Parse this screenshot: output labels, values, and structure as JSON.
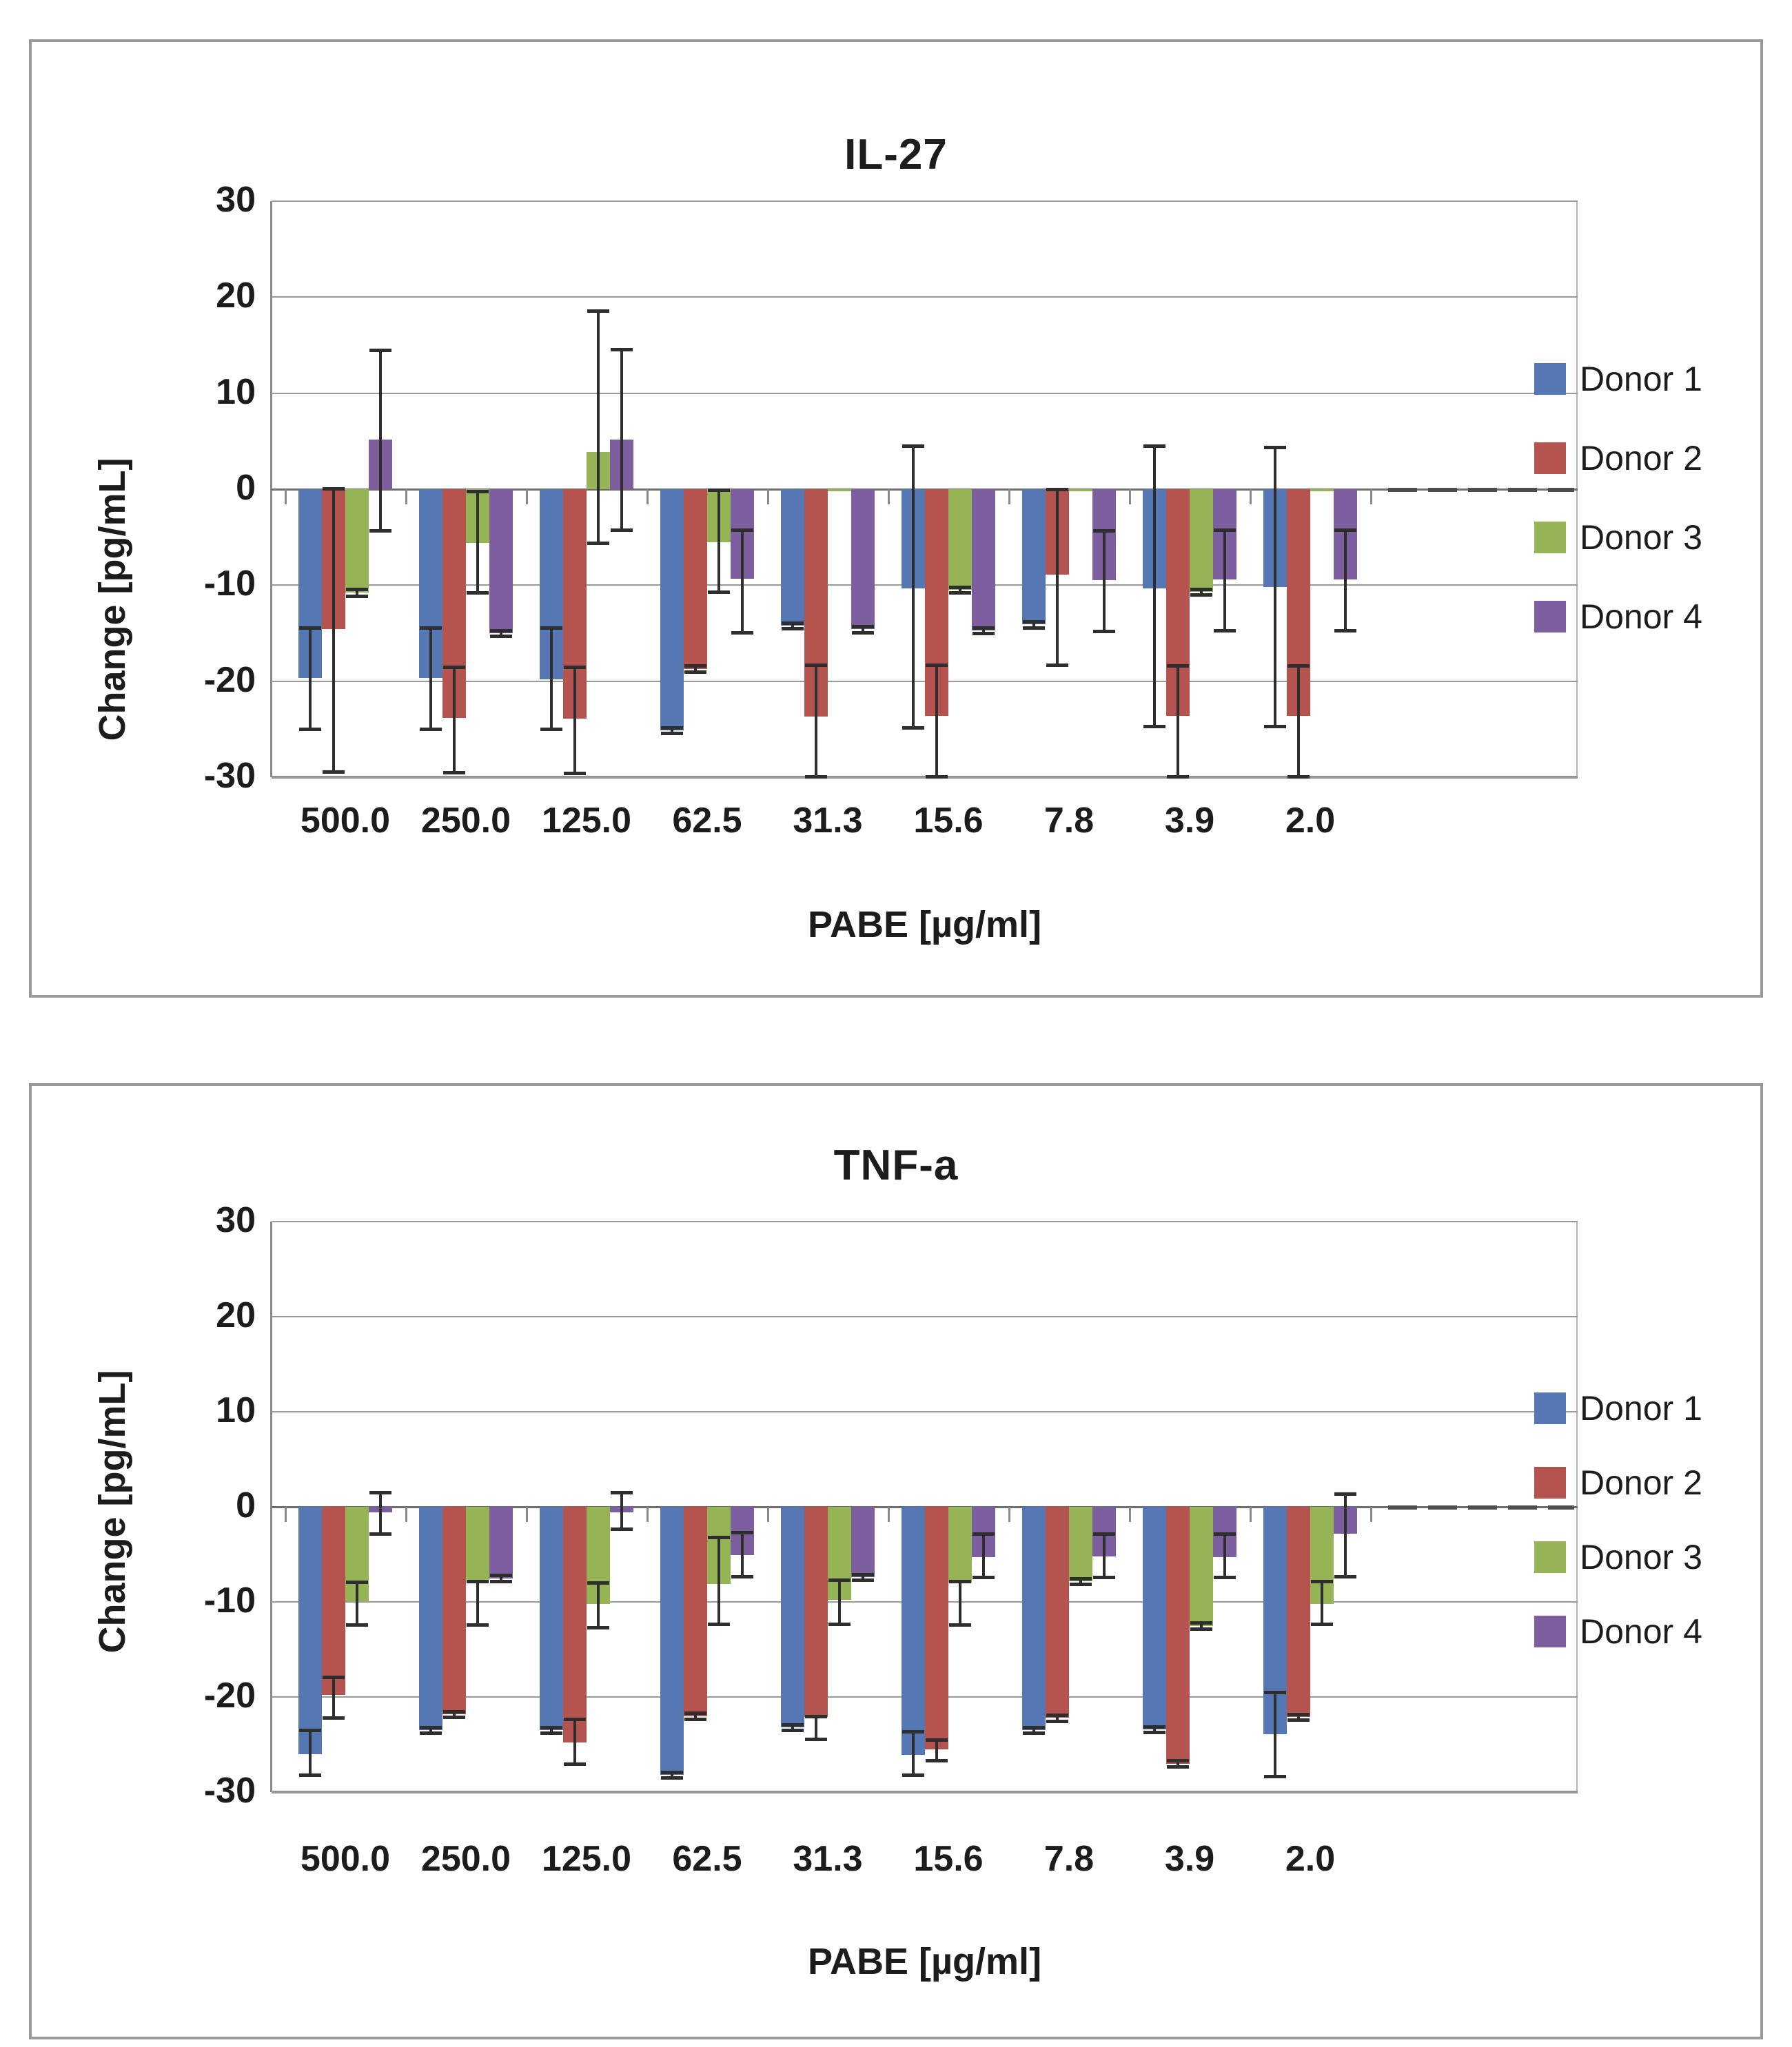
{
  "figure": {
    "background": "#ffffff",
    "panel_border_color": "#9a9a9a"
  },
  "chart_data": [
    {
      "type": "bar",
      "title": "IL-27",
      "ylabel": "Change [pg/mL]",
      "xlabel": "PABE [µg/ml]",
      "ylim": [
        -30,
        30
      ],
      "yticks": [
        30,
        20,
        10,
        0,
        -10,
        -20,
        -30
      ],
      "grid": true,
      "legend_position": "right",
      "categories": [
        "500.0",
        "250.0",
        "125.0",
        "62.5",
        "31.3",
        "15.6",
        "7.8",
        "3.9",
        "2.0"
      ],
      "series": [
        {
          "name": "Donor 1",
          "color": "#5577B4",
          "values": [
            -19.7,
            -19.7,
            -19.8,
            -25.1,
            -14.2,
            -10.3,
            -14.1,
            -10.3,
            -10.2
          ],
          "error_bars": [
            {
              "hi": -14.4,
              "lo": -25.0
            },
            {
              "hi": -14.4,
              "lo": -25.0
            },
            {
              "hi": -14.4,
              "lo": -25.0
            },
            {
              "hi": -24.8,
              "lo": -25.4
            },
            {
              "hi": -13.9,
              "lo": -14.5
            },
            {
              "hi": 4.5,
              "lo": -24.8
            },
            {
              "hi": -13.8,
              "lo": -14.4
            },
            {
              "hi": 4.5,
              "lo": -24.7
            },
            {
              "hi": 4.4,
              "lo": -24.7
            }
          ]
        },
        {
          "name": "Donor 2",
          "color": "#B5534F",
          "values": [
            -14.6,
            -23.8,
            -23.9,
            -18.7,
            -23.7,
            -23.6,
            -8.9,
            -23.6,
            -23.6
          ],
          "error_bars": [
            {
              "hi": 0.1,
              "lo": -29.4
            },
            {
              "hi": -18.5,
              "lo": -29.5
            },
            {
              "hi": -18.5,
              "lo": -29.6
            },
            {
              "hi": -18.4,
              "lo": -19.0
            },
            {
              "hi": -18.3,
              "lo": -29.9
            },
            {
              "hi": -18.3,
              "lo": -29.9
            },
            {
              "hi": 0.0,
              "lo": -18.3
            },
            {
              "hi": -18.4,
              "lo": -29.9
            },
            {
              "hi": -18.4,
              "lo": -29.9
            }
          ]
        },
        {
          "name": "Donor 3",
          "color": "#95B455",
          "values": [
            -10.8,
            -5.6,
            3.9,
            -5.5,
            -0.2,
            -10.5,
            -0.2,
            -10.7,
            -0.2
          ],
          "error_bars": [
            {
              "hi": -10.4,
              "lo": -11.1
            },
            {
              "hi": -0.2,
              "lo": -10.8
            },
            {
              "hi": 18.6,
              "lo": -5.6
            },
            {
              "hi": -0.1,
              "lo": -10.7
            },
            null,
            {
              "hi": -10.2,
              "lo": -10.8
            },
            null,
            {
              "hi": -10.4,
              "lo": -11.0
            },
            null
          ]
        },
        {
          "name": "Donor 4",
          "color": "#7D5FA0",
          "values": [
            5.2,
            -15.0,
            5.2,
            -9.3,
            -14.6,
            -14.7,
            -9.5,
            -9.4,
            -9.4
          ],
          "error_bars": [
            {
              "hi": 14.5,
              "lo": -4.3
            },
            {
              "hi": -14.7,
              "lo": -15.3
            },
            {
              "hi": 14.6,
              "lo": -4.2
            },
            {
              "hi": -4.2,
              "lo": -14.9
            },
            {
              "hi": -14.3,
              "lo": -14.9
            },
            {
              "hi": -14.4,
              "lo": -15.0
            },
            {
              "hi": -4.3,
              "lo": -14.8
            },
            {
              "hi": -4.2,
              "lo": -14.7
            },
            {
              "hi": -4.2,
              "lo": -14.7
            }
          ]
        }
      ]
    },
    {
      "type": "bar",
      "title": "TNF-a",
      "ylabel": "Change [pg/mL]",
      "xlabel": "PABE [µg/ml]",
      "ylim": [
        -30,
        30
      ],
      "yticks": [
        30,
        20,
        10,
        0,
        -10,
        -20,
        -30
      ],
      "grid": true,
      "legend_position": "right",
      "categories": [
        "500.0",
        "250.0",
        "125.0",
        "62.5",
        "31.3",
        "15.6",
        "7.8",
        "3.9",
        "2.0"
      ],
      "series": [
        {
          "name": "Donor 1",
          "color": "#5577B4",
          "values": [
            -26.0,
            -23.5,
            -23.5,
            -28.2,
            -23.2,
            -26.1,
            -23.5,
            -23.4,
            -23.9
          ],
          "error_bars": [
            {
              "hi": -23.5,
              "lo": -28.2
            },
            {
              "hi": -23.2,
              "lo": -23.8
            },
            {
              "hi": -23.2,
              "lo": -23.8
            },
            {
              "hi": -27.9,
              "lo": -28.5
            },
            {
              "hi": -22.9,
              "lo": -23.5
            },
            {
              "hi": -23.6,
              "lo": -28.2
            },
            {
              "hi": -23.2,
              "lo": -23.8
            },
            {
              "hi": -23.1,
              "lo": -23.7
            },
            {
              "hi": -19.5,
              "lo": -28.3
            }
          ]
        },
        {
          "name": "Donor 2",
          "color": "#B5534F",
          "values": [
            -19.8,
            -21.8,
            -24.8,
            -22.0,
            -22.1,
            -25.5,
            -22.2,
            -27.0,
            -22.1
          ],
          "error_bars": [
            {
              "hi": -17.9,
              "lo": -22.2
            },
            {
              "hi": -21.5,
              "lo": -22.1
            },
            {
              "hi": -22.3,
              "lo": -27.0
            },
            {
              "hi": -21.7,
              "lo": -22.3
            },
            {
              "hi": -22.0,
              "lo": -24.4
            },
            {
              "hi": -24.5,
              "lo": -26.7
            },
            {
              "hi": -21.9,
              "lo": -22.5
            },
            {
              "hi": -26.7,
              "lo": -27.3
            },
            {
              "hi": -21.8,
              "lo": -22.4
            }
          ]
        },
        {
          "name": "Donor 3",
          "color": "#95B455",
          "values": [
            -9.9,
            -7.7,
            -10.2,
            -8.1,
            -9.8,
            -8.0,
            -7.8,
            -12.5,
            -10.2
          ],
          "error_bars": [
            {
              "hi": -7.9,
              "lo": -12.4
            },
            {
              "hi": -7.8,
              "lo": -12.4
            },
            {
              "hi": -8.0,
              "lo": -12.7
            },
            {
              "hi": -3.2,
              "lo": -12.3
            },
            {
              "hi": -7.7,
              "lo": -12.3
            },
            {
              "hi": -7.8,
              "lo": -12.4
            },
            {
              "hi": -7.5,
              "lo": -8.1
            },
            {
              "hi": -12.2,
              "lo": -12.8
            },
            {
              "hi": -7.8,
              "lo": -12.3
            }
          ]
        },
        {
          "name": "Donor 4",
          "color": "#7D5FA0",
          "values": [
            -0.6,
            -7.5,
            -0.6,
            -5.1,
            -7.4,
            -5.3,
            -5.2,
            -5.3,
            -2.8
          ],
          "error_bars": [
            {
              "hi": 1.5,
              "lo": -2.8
            },
            {
              "hi": -7.2,
              "lo": -7.8
            },
            {
              "hi": 1.5,
              "lo": -2.3
            },
            {
              "hi": -2.7,
              "lo": -7.3
            },
            {
              "hi": -7.1,
              "lo": -7.7
            },
            {
              "hi": -2.8,
              "lo": -7.4
            },
            {
              "hi": -2.8,
              "lo": -7.4
            },
            {
              "hi": -2.8,
              "lo": -7.4
            },
            {
              "hi": 1.4,
              "lo": -7.3
            }
          ]
        }
      ]
    }
  ]
}
